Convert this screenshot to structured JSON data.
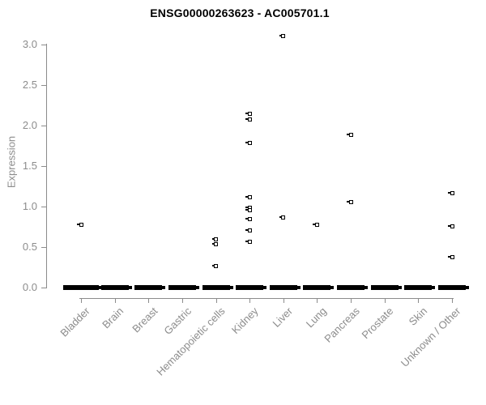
{
  "chart_data": {
    "type": "scatter",
    "title": "ENSG00000263623 - AC005701.1",
    "xlabel": "",
    "ylabel": "Expression",
    "ylim": [
      0.0,
      3.1
    ],
    "yticks": [
      0.0,
      0.5,
      1.0,
      1.5,
      2.0,
      2.5,
      3.0
    ],
    "grid": false,
    "legend": "none",
    "marker": "open-square",
    "colors": {
      "marker": "#000000",
      "axis": "#8c8c8c",
      "tick_text": "#8c8c8c",
      "title_text": "#000000",
      "background": "#ffffff"
    },
    "categories": [
      "Bladder",
      "Brain",
      "Breast",
      "Gastric",
      "Hematopoietic cells",
      "Kidney",
      "Liver",
      "Lung",
      "Pancreas",
      "Prostate",
      "Skin",
      "Unknown / Other"
    ],
    "series_by_category": [
      {
        "category": "Bladder",
        "nonzero_values": [
          0.78
        ],
        "zero_cluster": true
      },
      {
        "category": "Brain",
        "nonzero_values": [],
        "zero_cluster": true
      },
      {
        "category": "Breast",
        "nonzero_values": [],
        "zero_cluster": true
      },
      {
        "category": "Gastric",
        "nonzero_values": [],
        "zero_cluster": true
      },
      {
        "category": "Hematopoietic cells",
        "nonzero_values": [
          0.6,
          0.54,
          0.27
        ],
        "zero_cluster": true
      },
      {
        "category": "Kidney",
        "nonzero_values": [
          2.15,
          2.08,
          1.79,
          1.12,
          0.99,
          0.96,
          0.85,
          0.71,
          0.57
        ],
        "zero_cluster": true
      },
      {
        "category": "Liver",
        "nonzero_values": [
          3.11,
          0.87
        ],
        "zero_cluster": true
      },
      {
        "category": "Lung",
        "nonzero_values": [
          0.78
        ],
        "zero_cluster": true
      },
      {
        "category": "Pancreas",
        "nonzero_values": [
          1.89,
          1.06
        ],
        "zero_cluster": true
      },
      {
        "category": "Prostate",
        "nonzero_values": [],
        "zero_cluster": true
      },
      {
        "category": "Skin",
        "nonzero_values": [],
        "zero_cluster": true
      },
      {
        "category": "Unknown / Other",
        "nonzero_values": [
          1.17,
          0.76,
          0.38
        ],
        "zero_cluster": true
      }
    ]
  }
}
